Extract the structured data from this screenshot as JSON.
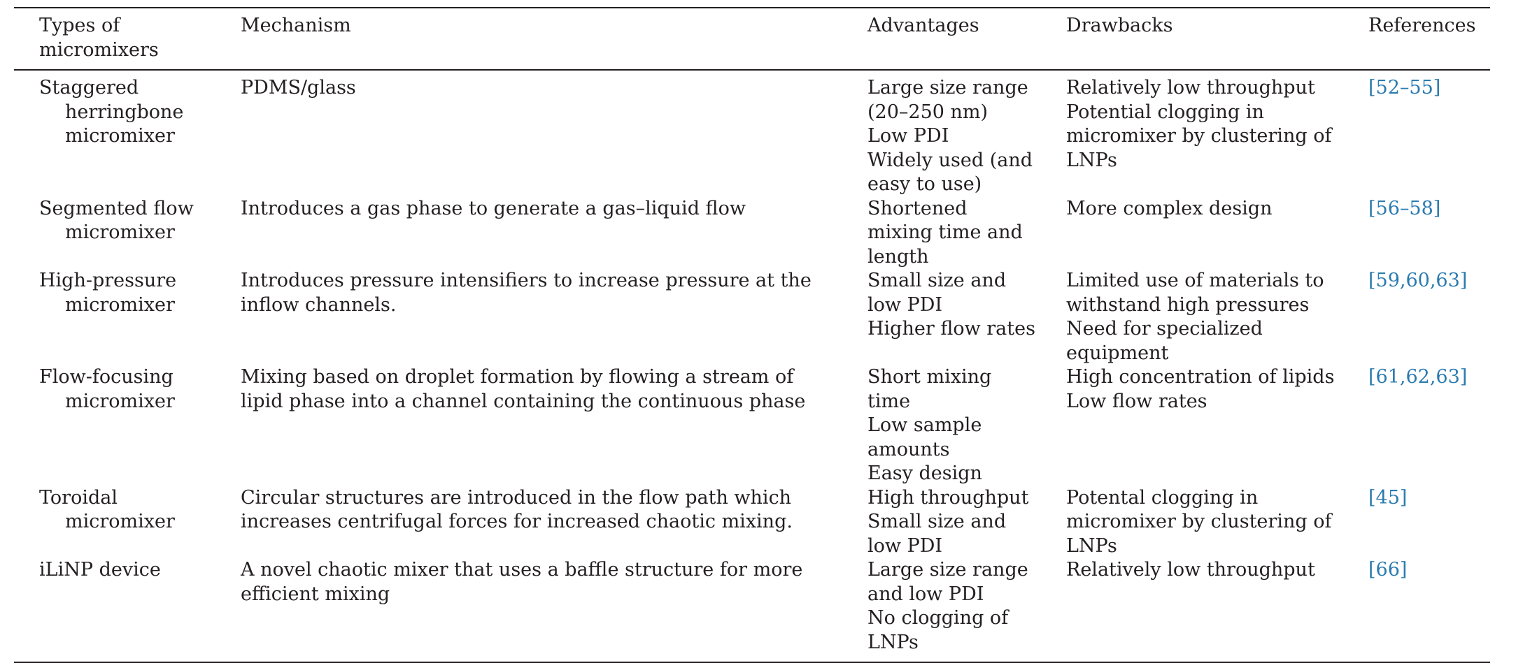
{
  "table": {
    "headers": [
      "Types of micromixers",
      "Mechanism",
      "Advantages",
      "Drawbacks",
      "References"
    ],
    "rows": [
      {
        "type": "Staggered herringbone micromixer",
        "mechanism": "PDMS/glass",
        "advantages": [
          "Large size range (20–250 nm)",
          "Low PDI",
          "Widely used (and easy to use)"
        ],
        "drawbacks": [
          "Relatively low throughput",
          "Potential clogging in micromixer by clustering of LNPs"
        ],
        "references": "[52–55]"
      },
      {
        "type": "Segmented flow micromixer",
        "mechanism": "Introduces a gas phase to generate a gas–liquid flow",
        "advantages": [
          "Shortened mixing time and length"
        ],
        "drawbacks": [
          "More complex design"
        ],
        "references": "[56–58]"
      },
      {
        "type": "High-pressure micromixer",
        "mechanism": "Introduces pressure intensifiers to increase pressure at the inflow channels.",
        "advantages": [
          "Small size and low PDI",
          "Higher flow rates"
        ],
        "drawbacks": [
          "Limited use of materials to withstand high pressures",
          "Need for specialized equipment"
        ],
        "references": "[59,60,63]"
      },
      {
        "type": "Flow-focusing micromixer",
        "mechanism": "Mixing based on droplet formation by flowing a stream of lipid phase into a channel containing the continuous phase",
        "advantages": [
          "Short mixing time",
          "Low sample amounts",
          "Easy design"
        ],
        "drawbacks": [
          "High concentration of lipids",
          "Low flow rates"
        ],
        "references": "[61,62,63]"
      },
      {
        "type": "Toroidal micromixer",
        "mechanism": "Circular structures are introduced in the flow path which increases centrifugal forces for increased chaotic mixing.",
        "advantages": [
          "High throughput",
          "Small size and low PDI"
        ],
        "drawbacks": [
          "Potental clogging in micromixer by clustering of LNPs"
        ],
        "references": "[45]"
      },
      {
        "type": "iLiNP device",
        "mechanism": "A novel chaotic mixer that uses a baffle structure for more efficient mixing",
        "advantages": [
          "Large size range and low PDI",
          "No clogging of LNPs"
        ],
        "drawbacks": [
          "Relatively low throughput"
        ],
        "references": "[66]"
      }
    ]
  },
  "colors": {
    "text": "#231f20",
    "reference_link": "#2a7bb0",
    "rule": "#231f20"
  }
}
